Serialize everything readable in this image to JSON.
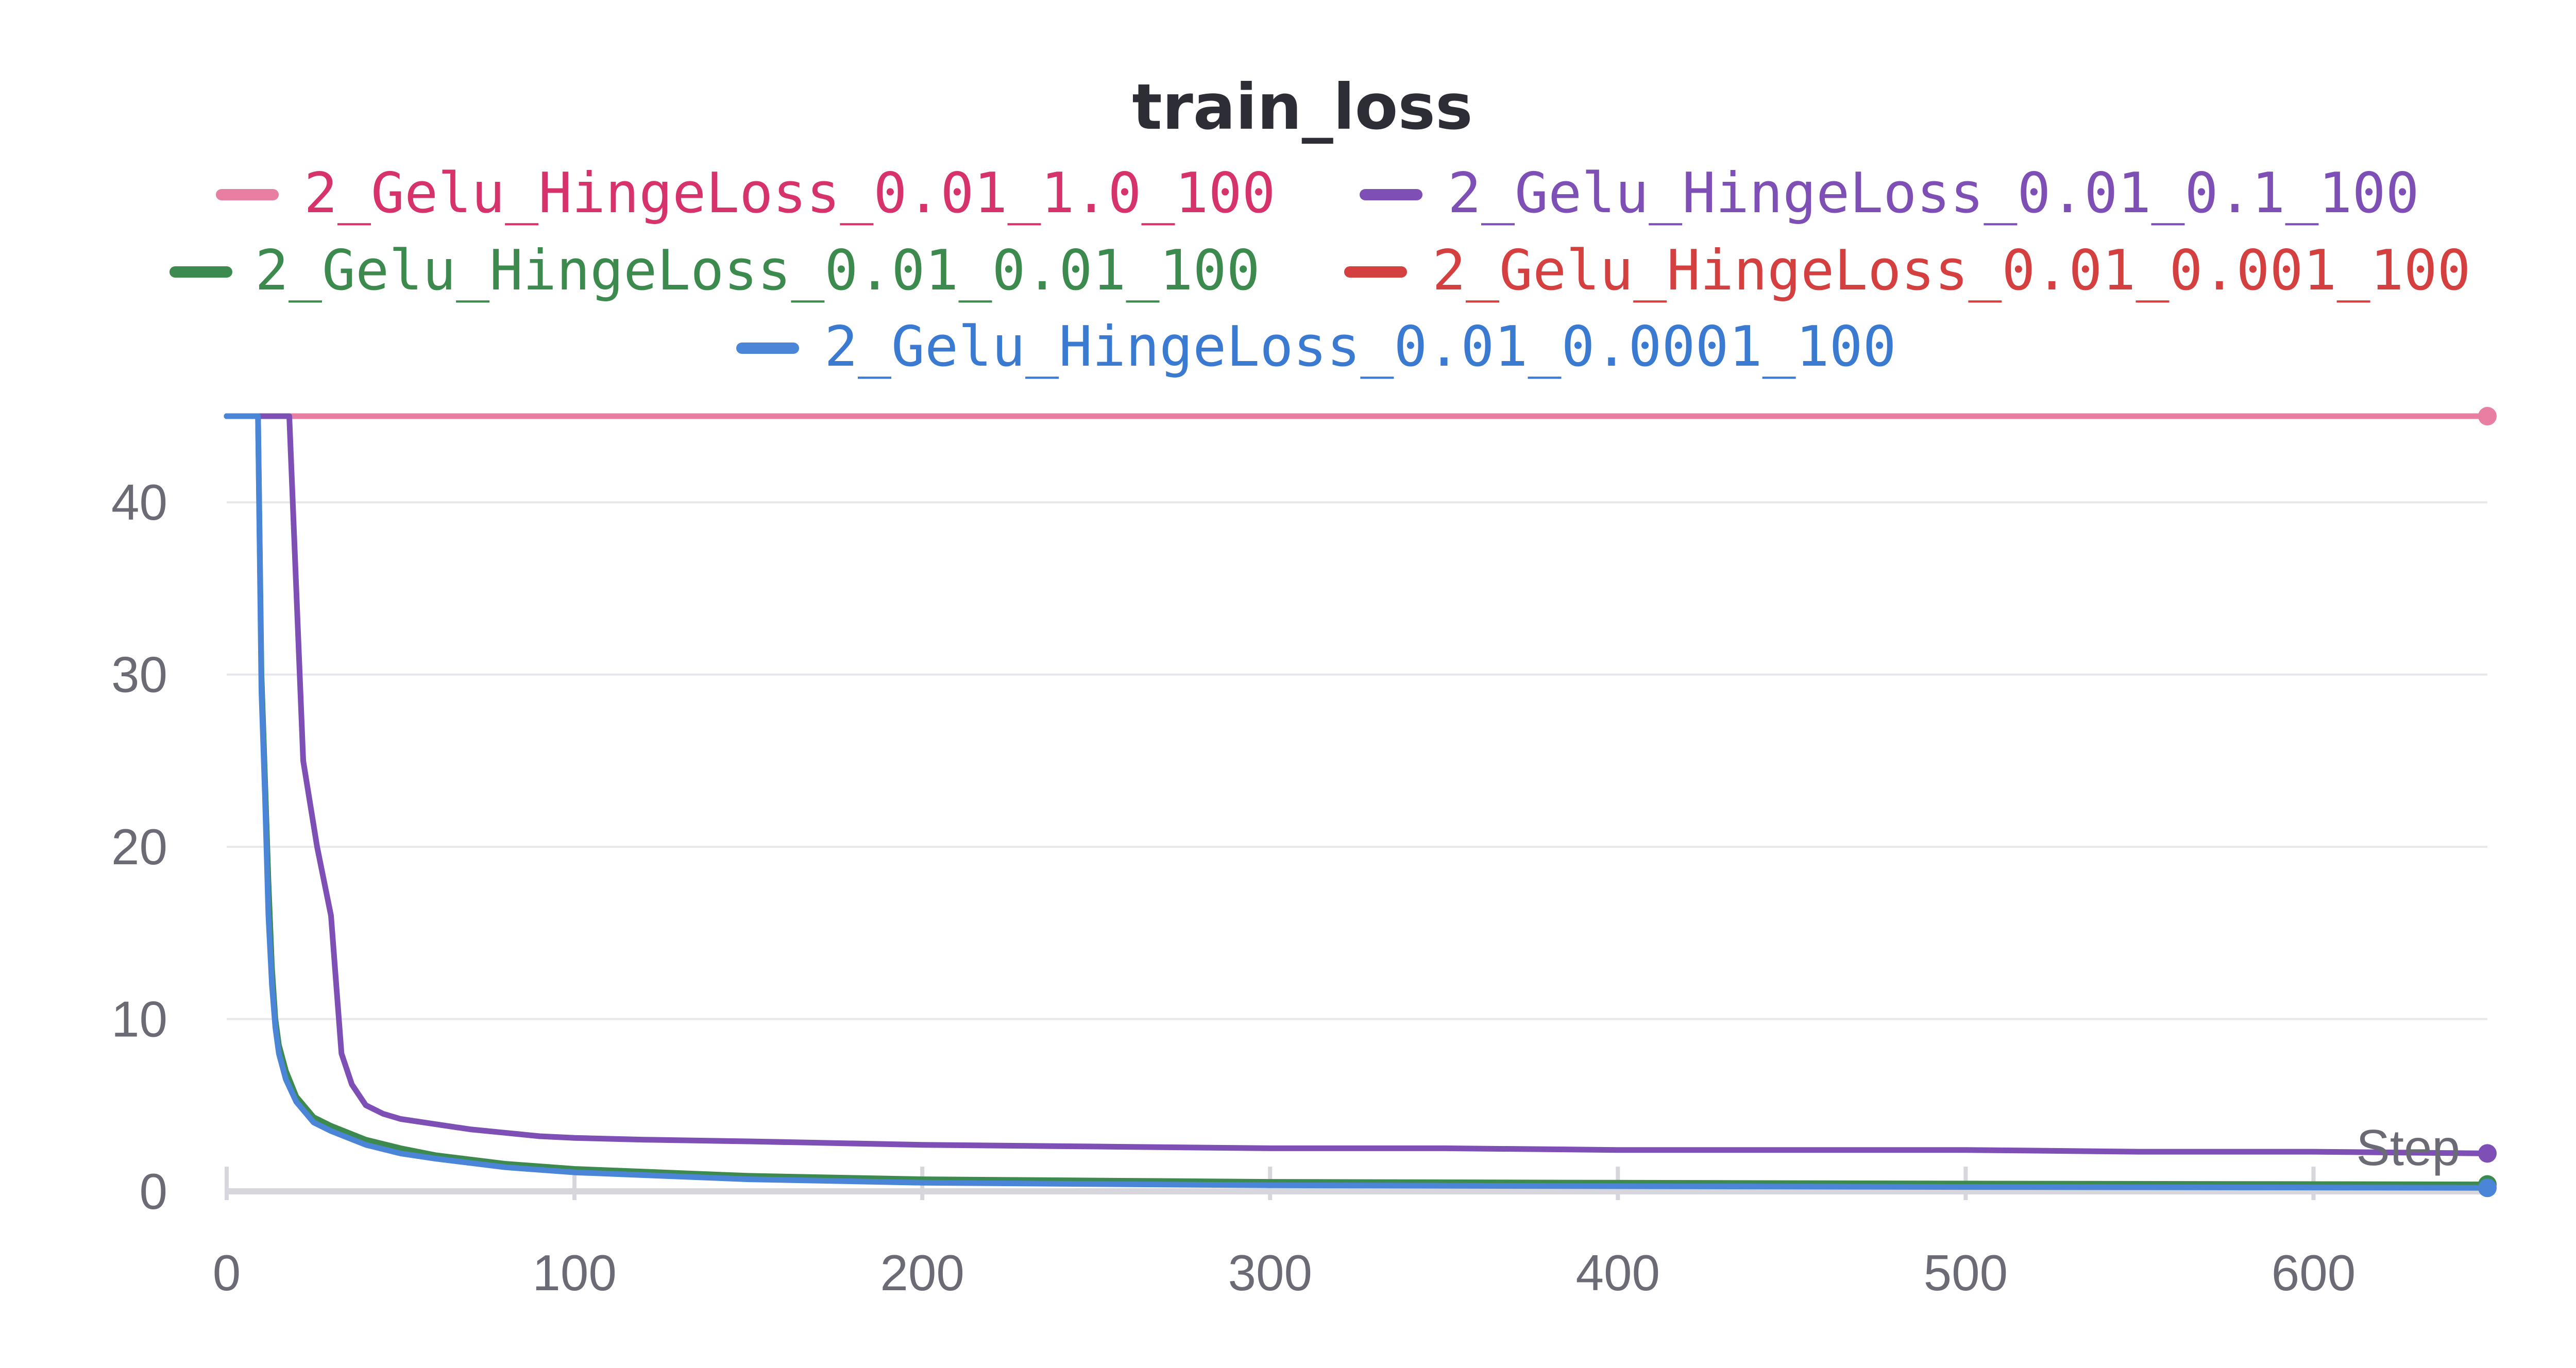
{
  "chart_data": {
    "type": "line",
    "title": "train_loss",
    "xlabel": "Step",
    "ylabel": "",
    "xlim": [
      0,
      650
    ],
    "ylim": [
      0,
      45
    ],
    "x_ticks": [
      0,
      100,
      200,
      300,
      400,
      500,
      600
    ],
    "y_ticks": [
      0,
      10,
      20,
      30,
      40
    ],
    "grid": true,
    "legend_position": "top",
    "series": [
      {
        "name": "2_Gelu_HingeLoss_0.01_1.0_100",
        "color": "#e87ea1",
        "label_color": "#d6336c",
        "x": [
          0,
          650
        ],
        "y": [
          45,
          45
        ]
      },
      {
        "name": "2_Gelu_HingeLoss_0.01_0.1_100",
        "color": "#7e4fb5",
        "label_color": "#7e4fb5",
        "x": [
          0,
          10,
          18,
          22,
          26,
          30,
          33,
          36,
          40,
          45,
          50,
          60,
          70,
          80,
          90,
          100,
          120,
          150,
          200,
          250,
          300,
          350,
          400,
          450,
          500,
          550,
          600,
          650
        ],
        "y": [
          45,
          45,
          45,
          25,
          20,
          16,
          8,
          6.2,
          5.0,
          4.5,
          4.2,
          3.9,
          3.6,
          3.4,
          3.2,
          3.1,
          3.0,
          2.9,
          2.7,
          2.6,
          2.5,
          2.5,
          2.4,
          2.4,
          2.4,
          2.3,
          2.3,
          2.2
        ]
      },
      {
        "name": "2_Gelu_HingeLoss_0.01_0.01_100",
        "color": "#3d8a4e",
        "label_color": "#3d8a4e",
        "x": [
          0,
          9,
          10,
          11,
          12,
          13,
          14,
          15,
          17,
          20,
          25,
          30,
          40,
          50,
          60,
          80,
          100,
          150,
          200,
          300,
          400,
          500,
          600,
          650
        ],
        "y": [
          45,
          45,
          30,
          24,
          18,
          13,
          10,
          8.5,
          7,
          5.5,
          4.3,
          3.8,
          3.0,
          2.5,
          2.1,
          1.6,
          1.3,
          0.9,
          0.7,
          0.55,
          0.5,
          0.45,
          0.42,
          0.4
        ]
      },
      {
        "name": "2_Gelu_HingeLoss_0.01_0.001_100",
        "color": "#d43f3f",
        "label_color": "#d43f3f",
        "x": [],
        "y": []
      },
      {
        "name": "2_Gelu_HingeLoss_0.01_0.0001_100",
        "color": "#4a85d8",
        "label_color": "#3b7ad1",
        "x": [
          0,
          9,
          10,
          11,
          12,
          13,
          14,
          15,
          17,
          20,
          25,
          30,
          40,
          50,
          60,
          80,
          100,
          150,
          200,
          300,
          400,
          500,
          600,
          650
        ],
        "y": [
          45,
          45,
          29,
          23,
          16,
          12,
          9.5,
          8,
          6.5,
          5.2,
          4.0,
          3.5,
          2.7,
          2.2,
          1.9,
          1.4,
          1.1,
          0.7,
          0.5,
          0.35,
          0.3,
          0.25,
          0.22,
          0.2
        ]
      }
    ]
  }
}
